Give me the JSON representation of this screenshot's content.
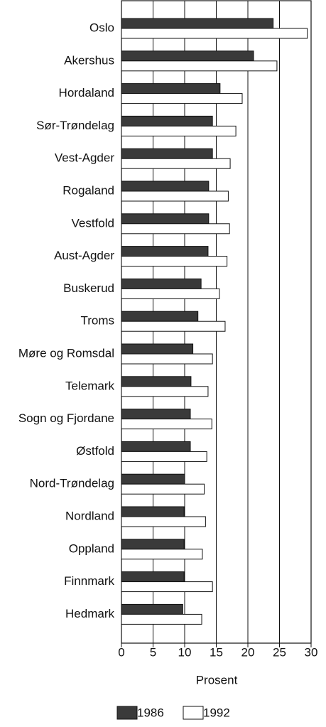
{
  "chart_data": {
    "type": "barh",
    "categories": [
      "Oslo",
      "Akershus",
      "Hordaland",
      "Sør-Trøndelag",
      "Vest-Agder",
      "Rogaland",
      "Vestfold",
      "Aust-Agder",
      "Buskerud",
      "Troms",
      "Møre og Romsdal",
      "Telemark",
      "Sogn og Fjordane",
      "Østfold",
      "Nord-Trøndelag",
      "Nordland",
      "Oppland",
      "Finnmark",
      "Hedmark"
    ],
    "series": [
      {
        "name": "1986",
        "color": "#3a3a3a",
        "values": [
          24.0,
          20.9,
          15.6,
          14.4,
          14.4,
          13.8,
          13.8,
          13.7,
          12.6,
          12.1,
          11.3,
          11.0,
          10.9,
          10.9,
          10.0,
          9.9,
          9.9,
          9.9,
          9.7
        ]
      },
      {
        "name": "1992",
        "color": "#ffffff",
        "values": [
          29.4,
          24.6,
          19.1,
          18.1,
          17.2,
          16.9,
          17.1,
          16.7,
          15.5,
          16.4,
          14.4,
          13.7,
          14.3,
          13.5,
          13.1,
          13.3,
          12.8,
          14.4,
          12.7
        ]
      }
    ],
    "xlabel": "Prosent",
    "xlim": [
      0,
      30
    ],
    "xticks": [
      0,
      5,
      10,
      15,
      20,
      25,
      30
    ],
    "grid": true
  }
}
